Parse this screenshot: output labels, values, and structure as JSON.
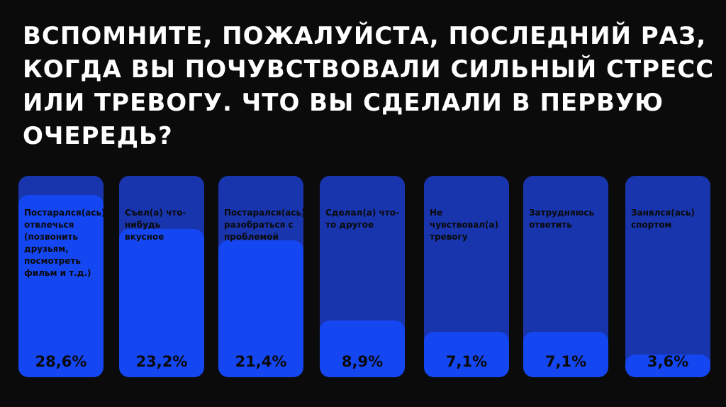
{
  "chart_data": {
    "type": "bar",
    "title": "ВСПОМНИТЕ, ПОЖАЛУЙСТА, ПОСЛЕДНИЙ РАЗ, КОГДА ВЫ ПОЧУВСТВОВАЛИ СИЛЬНЫЙ СТРЕСС ИЛИ ТРЕВОГУ. ЧТО ВЫ СДЕЛАЛИ В ПЕРВУЮ ОЧЕРЕДЬ?",
    "categories": [
      "Постарался(ась) отвлечься (позвонить друзьям, посмотреть фильм и т.д.)",
      "Съел(а) что-нибудь вкусное",
      "Постарался(ась) разобраться с проблемой",
      "Сделал(а) что-то другое",
      "Не чувствовал(а) тревогу",
      "Затрудняюсь ответить",
      "Занялся(ась) спортом"
    ],
    "values": [
      28.6,
      23.2,
      21.4,
      8.9,
      7.1,
      7.1,
      3.6
    ],
    "value_labels": [
      "28,6%",
      "23,2%",
      "21,4%",
      "8,9%",
      "7,1%",
      "7,1%",
      "3,6%"
    ],
    "ylim": [
      0,
      30
    ],
    "grid": false,
    "colors": {
      "track": "#1935ad",
      "fill": "#1446f2",
      "background": "#0b0b0b",
      "title": "#ffffff",
      "text": "#0a0a0a"
    }
  }
}
